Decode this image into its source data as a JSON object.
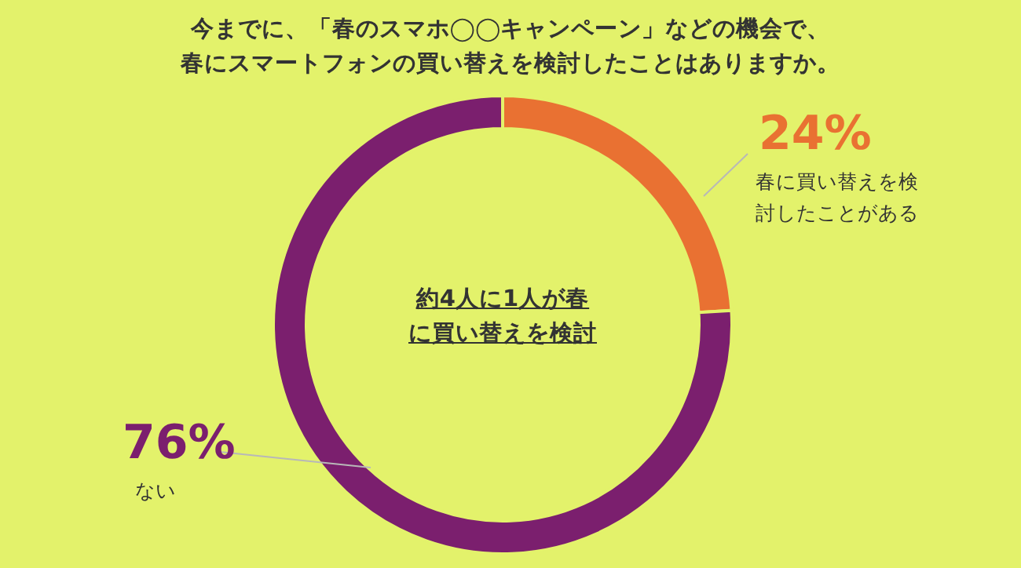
{
  "chart_data": {
    "type": "donut",
    "title": "今までに、「春のスマホ◯◯キャンペーン」などの機会で、春にスマートフォンの買い替えを検討したことはありますか。",
    "categories": [
      "春に買い替えを検討したことがある",
      "ない"
    ],
    "values": [
      24,
      76
    ],
    "value_labels": [
      "24%",
      "76%"
    ],
    "colors": [
      "#e97132",
      "#7b1f6e"
    ],
    "annotations": [
      "約4人に1人が春に買い替えを検討"
    ]
  }
}
